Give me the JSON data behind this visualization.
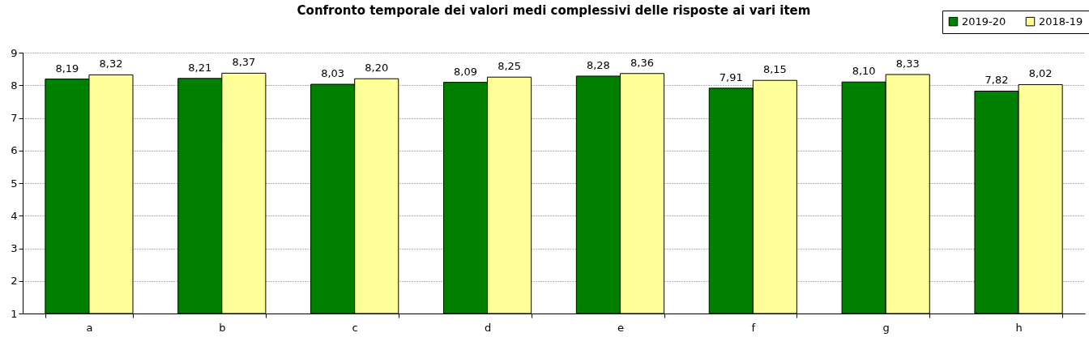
{
  "chart_data": {
    "type": "bar",
    "title": "Confronto temporale dei valori medi complessivi delle risposte ai vari item",
    "categories": [
      "a",
      "b",
      "c",
      "d",
      "e",
      "f",
      "g",
      "h"
    ],
    "series": [
      {
        "name": "2019-20",
        "color": "#008000",
        "values": [
          8.19,
          8.21,
          8.03,
          8.09,
          8.28,
          7.91,
          8.1,
          7.82
        ],
        "value_labels": [
          "8,19",
          "8,21",
          "8,03",
          "8,09",
          "8,28",
          "7,91",
          "8,10",
          "7,82"
        ]
      },
      {
        "name": "2018-19",
        "color": "#ffff99",
        "values": [
          8.32,
          8.37,
          8.2,
          8.25,
          8.36,
          8.15,
          8.33,
          8.02
        ],
        "value_labels": [
          "8,32",
          "8,37",
          "8,20",
          "8,25",
          "8,36",
          "8,15",
          "8,33",
          "8,02"
        ]
      }
    ],
    "ylim": [
      1,
      9
    ],
    "yticks": [
      1,
      2,
      3,
      4,
      5,
      6,
      7,
      8,
      9
    ],
    "grid": "y",
    "legend": "top right"
  }
}
